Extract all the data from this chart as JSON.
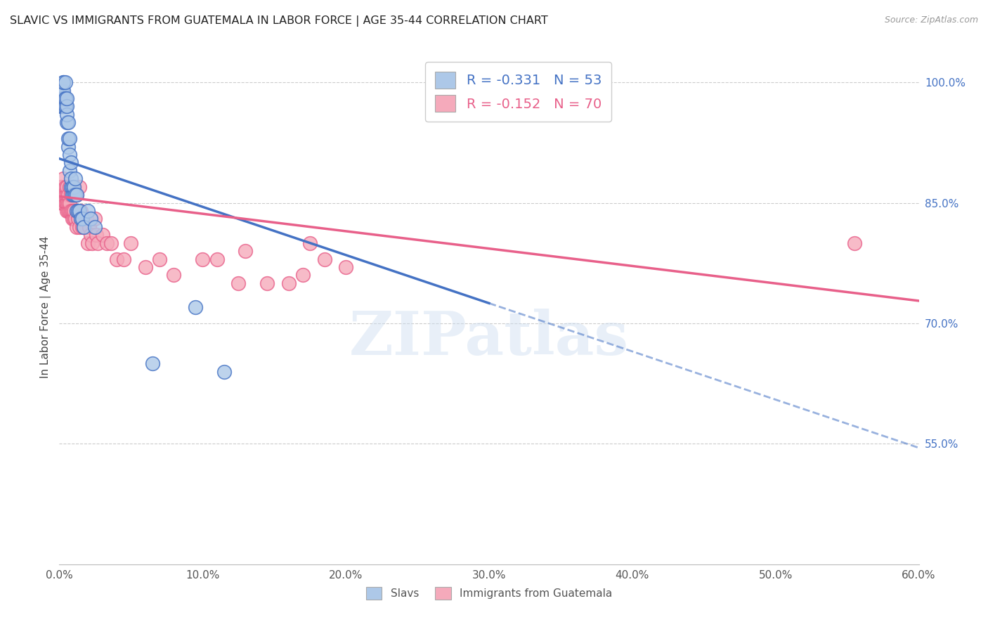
{
  "title": "SLAVIC VS IMMIGRANTS FROM GUATEMALA IN LABOR FORCE | AGE 35-44 CORRELATION CHART",
  "source": "Source: ZipAtlas.com",
  "ylabel": "In Labor Force | Age 35-44",
  "xlim": [
    0.0,
    0.6
  ],
  "ylim": [
    0.4,
    1.04
  ],
  "xtick_labels": [
    "0.0%",
    "10.0%",
    "20.0%",
    "30.0%",
    "40.0%",
    "50.0%",
    "60.0%"
  ],
  "xtick_values": [
    0.0,
    0.1,
    0.2,
    0.3,
    0.4,
    0.5,
    0.6
  ],
  "ytick_labels_right": [
    "55.0%",
    "70.0%",
    "85.0%",
    "100.0%"
  ],
  "ytick_values_right": [
    0.55,
    0.7,
    0.85,
    1.0
  ],
  "legend_R_blue": "-0.331",
  "legend_N_blue": "53",
  "legend_R_pink": "-0.152",
  "legend_N_pink": "70",
  "legend_label_blue": "Slavs",
  "legend_label_pink": "Immigrants from Guatemala",
  "blue_color": "#adc8e8",
  "pink_color": "#f5aabb",
  "blue_line_color": "#4472c4",
  "pink_line_color": "#e8608a",
  "watermark": "ZIPatlas",
  "blue_line_x0": 0.0,
  "blue_line_y0": 0.905,
  "blue_line_x1": 0.3,
  "blue_line_y1": 0.725,
  "blue_line_solid_end": 0.3,
  "blue_line_dash_end": 0.6,
  "pink_line_x0": 0.0,
  "pink_line_y0": 0.858,
  "pink_line_x1": 0.6,
  "pink_line_y1": 0.728,
  "blue_x": [
    0.001,
    0.001,
    0.001,
    0.002,
    0.002,
    0.002,
    0.002,
    0.002,
    0.003,
    0.003,
    0.003,
    0.003,
    0.003,
    0.003,
    0.003,
    0.004,
    0.004,
    0.004,
    0.004,
    0.004,
    0.004,
    0.005,
    0.005,
    0.005,
    0.005,
    0.006,
    0.006,
    0.006,
    0.007,
    0.007,
    0.007,
    0.008,
    0.008,
    0.008,
    0.009,
    0.009,
    0.01,
    0.01,
    0.011,
    0.011,
    0.012,
    0.012,
    0.013,
    0.014,
    0.015,
    0.016,
    0.017,
    0.02,
    0.022,
    0.025,
    0.065,
    0.095,
    0.115
  ],
  "blue_y": [
    0.97,
    0.98,
    0.99,
    0.97,
    0.97,
    0.98,
    0.98,
    0.99,
    0.97,
    0.97,
    0.98,
    0.98,
    0.99,
    1.0,
    1.0,
    0.97,
    0.97,
    0.97,
    0.98,
    0.98,
    1.0,
    0.95,
    0.96,
    0.97,
    0.98,
    0.92,
    0.93,
    0.95,
    0.89,
    0.91,
    0.93,
    0.87,
    0.88,
    0.9,
    0.86,
    0.87,
    0.86,
    0.87,
    0.86,
    0.88,
    0.84,
    0.86,
    0.84,
    0.84,
    0.83,
    0.83,
    0.82,
    0.84,
    0.83,
    0.82,
    0.65,
    0.72,
    0.64
  ],
  "pink_x": [
    0.001,
    0.001,
    0.002,
    0.002,
    0.002,
    0.003,
    0.003,
    0.003,
    0.004,
    0.004,
    0.004,
    0.005,
    0.005,
    0.005,
    0.005,
    0.005,
    0.006,
    0.006,
    0.006,
    0.007,
    0.007,
    0.007,
    0.008,
    0.008,
    0.009,
    0.009,
    0.01,
    0.01,
    0.01,
    0.011,
    0.011,
    0.012,
    0.012,
    0.013,
    0.013,
    0.014,
    0.014,
    0.015,
    0.016,
    0.017,
    0.018,
    0.019,
    0.02,
    0.021,
    0.022,
    0.023,
    0.025,
    0.026,
    0.027,
    0.03,
    0.033,
    0.036,
    0.04,
    0.045,
    0.05,
    0.06,
    0.07,
    0.08,
    0.1,
    0.11,
    0.125,
    0.13,
    0.145,
    0.16,
    0.17,
    0.175,
    0.185,
    0.2,
    0.31,
    0.555
  ],
  "pink_y": [
    0.86,
    0.87,
    0.85,
    0.86,
    0.87,
    0.85,
    0.86,
    0.88,
    0.85,
    0.86,
    0.87,
    0.84,
    0.85,
    0.85,
    0.86,
    0.87,
    0.84,
    0.85,
    0.86,
    0.84,
    0.85,
    0.87,
    0.84,
    0.86,
    0.83,
    0.84,
    0.83,
    0.84,
    0.87,
    0.83,
    0.86,
    0.82,
    0.86,
    0.83,
    0.84,
    0.82,
    0.87,
    0.84,
    0.82,
    0.82,
    0.83,
    0.83,
    0.8,
    0.82,
    0.81,
    0.8,
    0.83,
    0.81,
    0.8,
    0.81,
    0.8,
    0.8,
    0.78,
    0.78,
    0.8,
    0.77,
    0.78,
    0.76,
    0.78,
    0.78,
    0.75,
    0.79,
    0.75,
    0.75,
    0.76,
    0.8,
    0.78,
    0.77,
    1.0,
    0.8
  ],
  "background_color": "#ffffff"
}
